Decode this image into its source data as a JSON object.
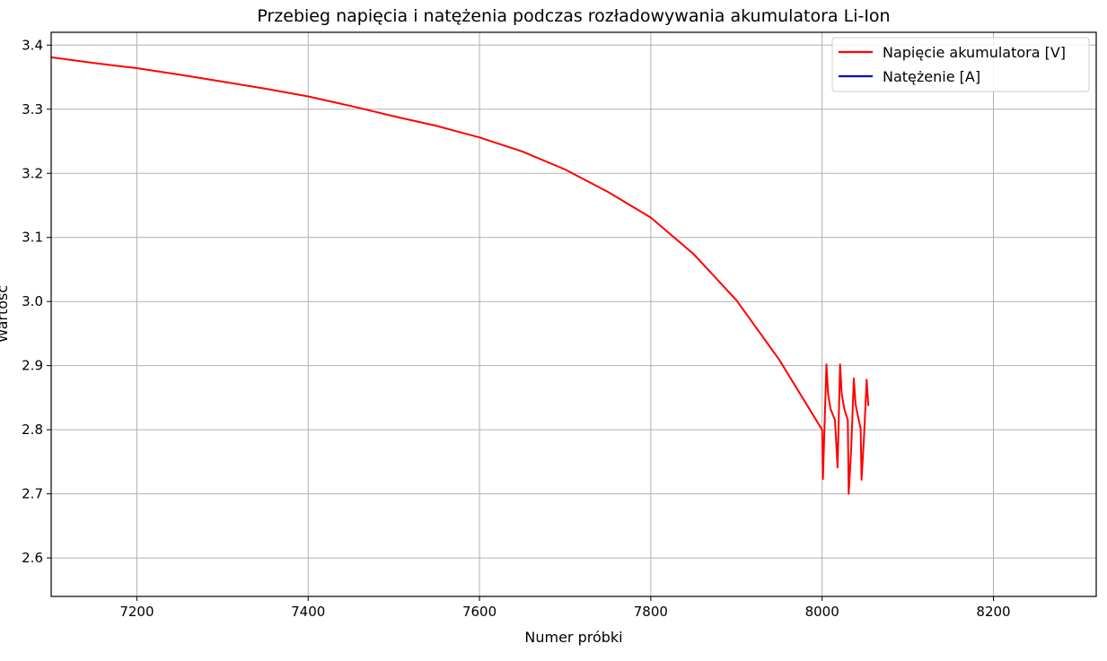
{
  "chart_data": {
    "type": "line",
    "title": "Przebieg napięcia i natężenia podczas rozładowywania akumulatora Li-Ion",
    "xlabel": "Numer próbki",
    "ylabel": "Wartość",
    "xlim": [
      7100,
      8320
    ],
    "ylim": [
      2.54,
      3.42
    ],
    "xticks": [
      7200,
      7400,
      7600,
      7800,
      8000,
      8200
    ],
    "yticks": [
      2.6,
      2.7,
      2.8,
      2.9,
      3.0,
      3.1,
      3.2,
      3.3,
      3.4
    ],
    "grid": true,
    "legend_position": "top-right",
    "series": [
      {
        "name": "Napięcie akumulatora [V]",
        "color": "#ff0000",
        "x": [
          7100,
          7150,
          7200,
          7250,
          7300,
          7350,
          7400,
          7450,
          7500,
          7550,
          7600,
          7650,
          7700,
          7750,
          7800,
          7850,
          7900,
          7950,
          8000,
          8001,
          8005,
          8007,
          8010,
          8015,
          8018,
          8021,
          8023,
          8026,
          8030,
          8031,
          8034,
          8037,
          8039,
          8042,
          8045,
          8046,
          8049,
          8052,
          8054
        ],
        "y": [
          3.381,
          3.372,
          3.364,
          3.354,
          3.343,
          3.332,
          3.32,
          3.305,
          3.289,
          3.274,
          3.256,
          3.234,
          3.206,
          3.171,
          3.131,
          3.074,
          3.002,
          2.909,
          2.8,
          2.723,
          2.902,
          2.855,
          2.832,
          2.815,
          2.741,
          2.902,
          2.855,
          2.832,
          2.815,
          2.7,
          2.77,
          2.88,
          2.84,
          2.82,
          2.802,
          2.722,
          2.79,
          2.878,
          2.837
        ]
      },
      {
        "name": "Natężenie [A]",
        "color": "#0000cc",
        "x": [],
        "y": []
      }
    ]
  }
}
